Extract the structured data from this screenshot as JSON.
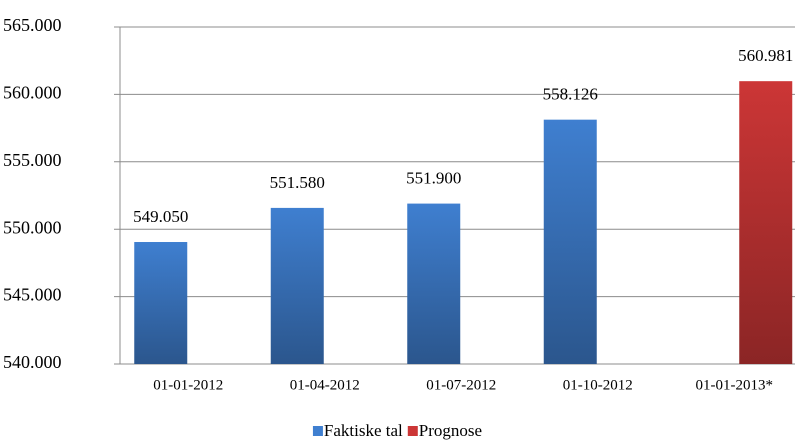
{
  "chart_data": {
    "type": "bar",
    "categories": [
      "01-01-2012",
      "01-04-2012",
      "01-07-2012",
      "01-10-2012",
      "01-01-2013*"
    ],
    "series": [
      {
        "name": "Faktiske tal",
        "color": "#3f7fd0",
        "values": [
          549050,
          551580,
          551900,
          558126,
          null
        ],
        "value_labels": [
          "549.050",
          "551.580",
          "551.900",
          "558.126",
          null
        ]
      },
      {
        "name": "Prognose",
        "color": "#cc3636",
        "values": [
          null,
          null,
          null,
          null,
          560981
        ],
        "value_labels": [
          null,
          null,
          null,
          null,
          "560.981"
        ]
      }
    ],
    "ylim": [
      540000,
      565000
    ],
    "yticks": [
      {
        "value": 540000,
        "label": "540.000"
      },
      {
        "value": 545000,
        "label": "545.000"
      },
      {
        "value": 550000,
        "label": "550.000"
      },
      {
        "value": 555000,
        "label": "555.000"
      },
      {
        "value": 560000,
        "label": "560.000"
      },
      {
        "value": 565000,
        "label": "565.000"
      }
    ],
    "grid": true,
    "legend": "bottom"
  }
}
